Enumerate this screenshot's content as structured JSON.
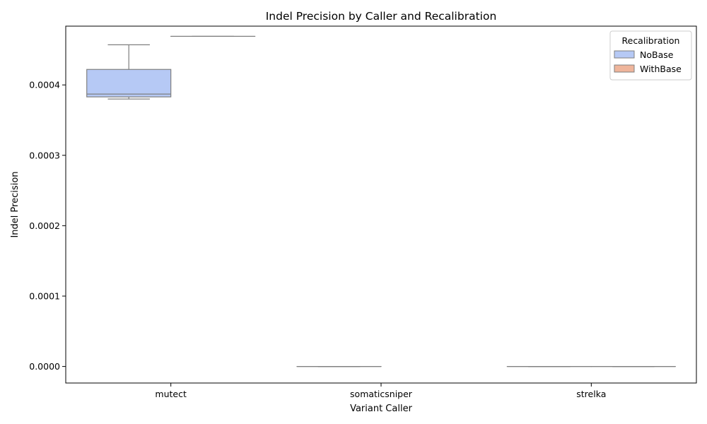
{
  "chart_data": {
    "type": "box",
    "title": "Indel Precision by Caller and Recalibration",
    "xlabel": "Variant Caller",
    "ylabel": "Indel Precision",
    "categories": [
      "mutect",
      "somaticsniper",
      "strelka"
    ],
    "ylim": [
      -2.35e-05,
      0.0004835
    ],
    "yticks": [
      0.0,
      0.0001,
      0.0002,
      0.0003,
      0.0004
    ],
    "ytick_labels": [
      "0.0000",
      "0.0001",
      "0.0002",
      "0.0003",
      "0.0004"
    ],
    "legend": {
      "title": "Recalibration",
      "position": "top-right"
    },
    "grid": false,
    "series": [
      {
        "name": "NoBase",
        "color": "#b6c9f5",
        "boxes": [
          {
            "category": "mutect",
            "min": 0.00038,
            "q1": 0.000383,
            "median": 0.000387,
            "q3": 0.000422,
            "max": 0.000457
          },
          {
            "category": "somaticsniper",
            "min": 0.0,
            "q1": 0.0,
            "median": 0.0,
            "q3": 0.0,
            "max": 0.0
          },
          {
            "category": "strelka",
            "min": 0.0,
            "q1": 0.0,
            "median": 0.0,
            "q3": 0.0,
            "max": 0.0
          }
        ]
      },
      {
        "name": "WithBase",
        "color": "#efb59b",
        "boxes": [
          {
            "category": "mutect",
            "min": 0.000469,
            "q1": 0.000469,
            "median": 0.000469,
            "q3": 0.000469,
            "max": 0.000469
          },
          {
            "category": "strelka",
            "min": 0.0,
            "q1": 0.0,
            "median": 0.0,
            "q3": 0.0,
            "max": 0.0
          }
        ]
      }
    ]
  }
}
